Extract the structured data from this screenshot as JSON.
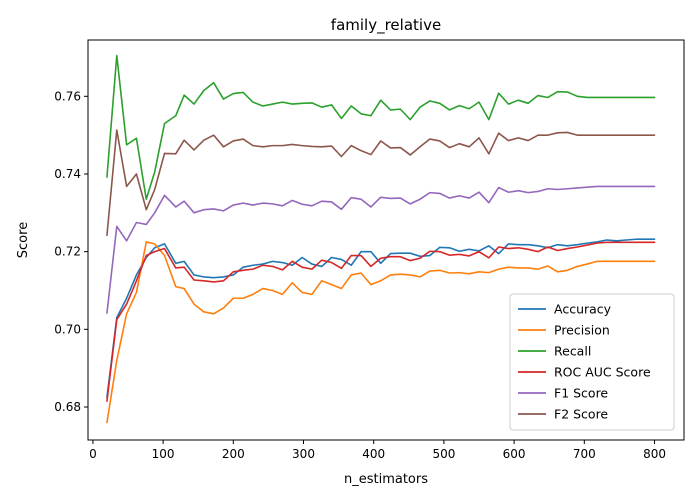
{
  "chart_data": {
    "type": "line",
    "title": "family_relative",
    "xlabel": "n_estimators",
    "ylabel": "Score",
    "xlim": [
      -7,
      842
    ],
    "ylim": [
      0.6715,
      0.7745
    ],
    "xticks": [
      0,
      100,
      200,
      300,
      400,
      500,
      600,
      700,
      800
    ],
    "yticks": [
      0.68,
      0.7,
      0.72,
      0.74,
      0.76
    ],
    "ytick_labels": [
      "0.68",
      "0.70",
      "0.72",
      "0.74",
      "0.76"
    ],
    "grid": false,
    "legend_position": "lower-right",
    "x": [
      20,
      34,
      48,
      62,
      76,
      88,
      102,
      118,
      130,
      144,
      158,
      172,
      186,
      200,
      214,
      228,
      242,
      256,
      270,
      284,
      298,
      312,
      326,
      340,
      354,
      368,
      382,
      396,
      410,
      424,
      438,
      452,
      466,
      480,
      494,
      508,
      522,
      536,
      550,
      564,
      578,
      592,
      606,
      620,
      634,
      648,
      662,
      676,
      690,
      704,
      718,
      732,
      746,
      760,
      774,
      788,
      800
    ],
    "series": [
      {
        "name": "Accuracy",
        "color": "#1f77b4",
        "values": [
          0.6825,
          0.703,
          0.708,
          0.714,
          0.7185,
          0.721,
          0.722,
          0.717,
          0.7175,
          0.714,
          0.7135,
          0.7133,
          0.7135,
          0.714,
          0.716,
          0.7165,
          0.7168,
          0.7175,
          0.7172,
          0.7165,
          0.7185,
          0.7168,
          0.7162,
          0.7185,
          0.718,
          0.7165,
          0.72,
          0.72,
          0.717,
          0.7195,
          0.7196,
          0.7196,
          0.7188,
          0.719,
          0.7211,
          0.721,
          0.7201,
          0.7206,
          0.7202,
          0.7215,
          0.7195,
          0.722,
          0.7218,
          0.7218,
          0.7215,
          0.721,
          0.7218,
          0.7215,
          0.7218,
          0.7222,
          0.7225,
          0.723,
          0.7228,
          0.723,
          0.7232,
          0.7232,
          0.7232
        ]
      },
      {
        "name": "Precision",
        "color": "#ff7f0e",
        "values": [
          0.676,
          0.692,
          0.704,
          0.7095,
          0.7225,
          0.722,
          0.719,
          0.711,
          0.7105,
          0.7065,
          0.7045,
          0.704,
          0.7055,
          0.708,
          0.708,
          0.709,
          0.7105,
          0.71,
          0.709,
          0.712,
          0.7095,
          0.709,
          0.7125,
          0.7115,
          0.7105,
          0.714,
          0.7145,
          0.7115,
          0.7125,
          0.714,
          0.7142,
          0.714,
          0.7135,
          0.715,
          0.7152,
          0.7145,
          0.7146,
          0.7143,
          0.7148,
          0.7146,
          0.7155,
          0.716,
          0.7158,
          0.7158,
          0.7155,
          0.7163,
          0.7148,
          0.7152,
          0.7162,
          0.7168,
          0.7175,
          0.7175,
          0.7175,
          0.7175,
          0.7175,
          0.7175,
          0.7175
        ]
      },
      {
        "name": "Recall",
        "color": "#2ca02c",
        "values": [
          0.7392,
          0.7705,
          0.7475,
          0.7492,
          0.7335,
          0.7405,
          0.753,
          0.755,
          0.7603,
          0.758,
          0.7615,
          0.7635,
          0.7593,
          0.7607,
          0.761,
          0.7585,
          0.7575,
          0.758,
          0.7585,
          0.758,
          0.7582,
          0.7583,
          0.7572,
          0.7578,
          0.7543,
          0.7575,
          0.7555,
          0.755,
          0.759,
          0.7565,
          0.7567,
          0.754,
          0.7572,
          0.7588,
          0.7582,
          0.7565,
          0.7576,
          0.7568,
          0.7585,
          0.754,
          0.7608,
          0.758,
          0.759,
          0.7582,
          0.7602,
          0.7597,
          0.7612,
          0.7611,
          0.76,
          0.7597,
          0.7597,
          0.7597,
          0.7597,
          0.7597,
          0.7597,
          0.7597,
          0.7597
        ]
      },
      {
        "name": "ROC AUC Score",
        "color": "#d62728",
        "values": [
          0.6815,
          0.7025,
          0.7065,
          0.7125,
          0.719,
          0.72,
          0.7208,
          0.7158,
          0.716,
          0.7127,
          0.7125,
          0.7122,
          0.7125,
          0.7148,
          0.7152,
          0.7155,
          0.7165,
          0.7162,
          0.7153,
          0.7175,
          0.716,
          0.7155,
          0.7178,
          0.7172,
          0.7157,
          0.719,
          0.719,
          0.7162,
          0.7183,
          0.7187,
          0.7187,
          0.7177,
          0.7183,
          0.7201,
          0.72,
          0.7191,
          0.7193,
          0.7189,
          0.72,
          0.7184,
          0.7212,
          0.7208,
          0.721,
          0.7206,
          0.72,
          0.7212,
          0.7203,
          0.7208,
          0.7212,
          0.7217,
          0.7222,
          0.7224,
          0.7224,
          0.7224,
          0.7224,
          0.7224,
          0.7224
        ]
      },
      {
        "name": "F1 Score",
        "color": "#9467bd",
        "values": [
          0.7042,
          0.7265,
          0.7228,
          0.7275,
          0.727,
          0.73,
          0.7345,
          0.7315,
          0.733,
          0.73,
          0.7308,
          0.731,
          0.7305,
          0.732,
          0.7325,
          0.732,
          0.7325,
          0.7323,
          0.7318,
          0.7332,
          0.7322,
          0.7318,
          0.733,
          0.7328,
          0.7309,
          0.7339,
          0.7335,
          0.7315,
          0.734,
          0.7337,
          0.7338,
          0.7323,
          0.7335,
          0.7352,
          0.735,
          0.7338,
          0.7344,
          0.7338,
          0.7353,
          0.7326,
          0.7365,
          0.7353,
          0.7357,
          0.7352,
          0.7355,
          0.7362,
          0.736,
          0.7362,
          0.7364,
          0.7366,
          0.7368,
          0.7368,
          0.7368,
          0.7368,
          0.7368,
          0.7368,
          0.7368
        ]
      },
      {
        "name": "F2 Score",
        "color": "#8c564b",
        "values": [
          0.7242,
          0.7513,
          0.7368,
          0.74,
          0.7308,
          0.736,
          0.7453,
          0.7452,
          0.7487,
          0.7462,
          0.7487,
          0.75,
          0.747,
          0.7485,
          0.749,
          0.7473,
          0.747,
          0.7473,
          0.7473,
          0.7476,
          0.7473,
          0.7471,
          0.747,
          0.7472,
          0.7445,
          0.7473,
          0.746,
          0.745,
          0.7485,
          0.7467,
          0.7468,
          0.7449,
          0.747,
          0.749,
          0.7485,
          0.7468,
          0.7478,
          0.747,
          0.7493,
          0.7452,
          0.7505,
          0.7486,
          0.7493,
          0.7486,
          0.75,
          0.75,
          0.7506,
          0.7507,
          0.75,
          0.75,
          0.75,
          0.75,
          0.75,
          0.75,
          0.75,
          0.75,
          0.75
        ]
      }
    ]
  }
}
